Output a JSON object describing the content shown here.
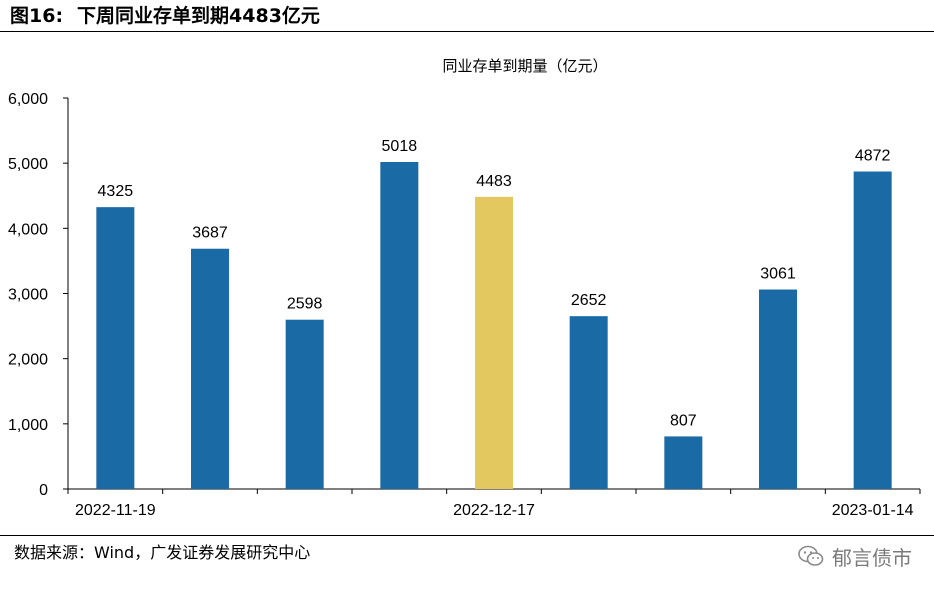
{
  "figure": {
    "number": "图16:",
    "title": "下周同业存单到期4483亿元"
  },
  "source": "数据来源：Wind，广发证券发展研究中心",
  "watermark": {
    "icon": "wechat-icon",
    "text": "郁言债市"
  },
  "colors": {
    "bar": "#1a6aa6",
    "highlight": "#e3c860",
    "axis": "#000000"
  },
  "chart_data": {
    "type": "bar",
    "title": "同业存单到期量（亿元）",
    "categories": [
      "2022-11-19",
      "",
      "",
      "",
      "2022-12-17",
      "",
      "",
      "",
      "2023-01-14"
    ],
    "values": [
      4325,
      3687,
      2598,
      5018,
      4483,
      2652,
      807,
      3061,
      4872
    ],
    "data_labels": [
      "4325",
      "3687",
      "2598",
      "5018",
      "4483",
      "2652",
      "807",
      "3061",
      "4872"
    ],
    "highlight_index": 4,
    "ylim": [
      0,
      6000
    ],
    "yticks": [
      0,
      1000,
      2000,
      3000,
      4000,
      5000,
      6000
    ],
    "ytick_labels": [
      "0",
      "1,000",
      "2,000",
      "3,000",
      "4,000",
      "5,000",
      "6,000"
    ],
    "xlabel": "",
    "ylabel": "",
    "grid": false
  }
}
